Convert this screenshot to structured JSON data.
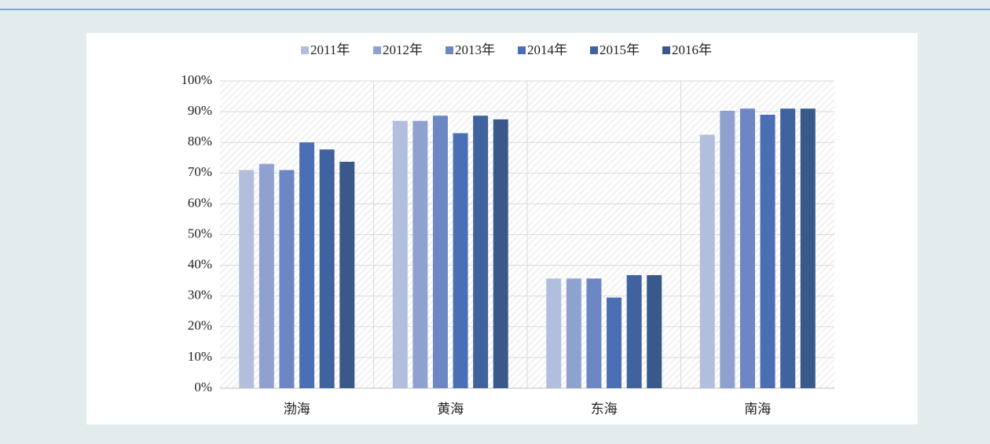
{
  "chart_data": {
    "type": "bar",
    "categories": [
      "渤海",
      "黄海",
      "东海",
      "南海"
    ],
    "series": [
      {
        "name": "2011年",
        "color": "#b1bfdc",
        "values": [
          71,
          87,
          35.7,
          82.5
        ]
      },
      {
        "name": "2012年",
        "color": "#8fa2cf",
        "values": [
          73,
          87,
          35.7,
          90.3
        ]
      },
      {
        "name": "2013年",
        "color": "#6c87c4",
        "values": [
          71,
          88.7,
          35.7,
          91
        ]
      },
      {
        "name": "2014年",
        "color": "#4a6fb5",
        "values": [
          80,
          83,
          29.5,
          89
        ]
      },
      {
        "name": "2015年",
        "color": "#40629e",
        "values": [
          77.7,
          88.7,
          36.8,
          91
        ]
      },
      {
        "name": "2016年",
        "color": "#3a598b",
        "values": [
          73.7,
          87.5,
          36.8,
          91
        ]
      }
    ],
    "ylim": [
      0,
      100
    ],
    "yticks": [
      {
        "value": 0,
        "label": "0%"
      },
      {
        "value": 10,
        "label": "10%"
      },
      {
        "value": 20,
        "label": "20%"
      },
      {
        "value": 30,
        "label": "30%"
      },
      {
        "value": 40,
        "label": "40%"
      },
      {
        "value": 50,
        "label": "50%"
      },
      {
        "value": 60,
        "label": "60%"
      },
      {
        "value": 70,
        "label": "70%"
      },
      {
        "value": 80,
        "label": "80%"
      },
      {
        "value": 90,
        "label": "90%"
      },
      {
        "value": 100,
        "label": "100%"
      }
    ],
    "grid": true,
    "legend": "top"
  }
}
